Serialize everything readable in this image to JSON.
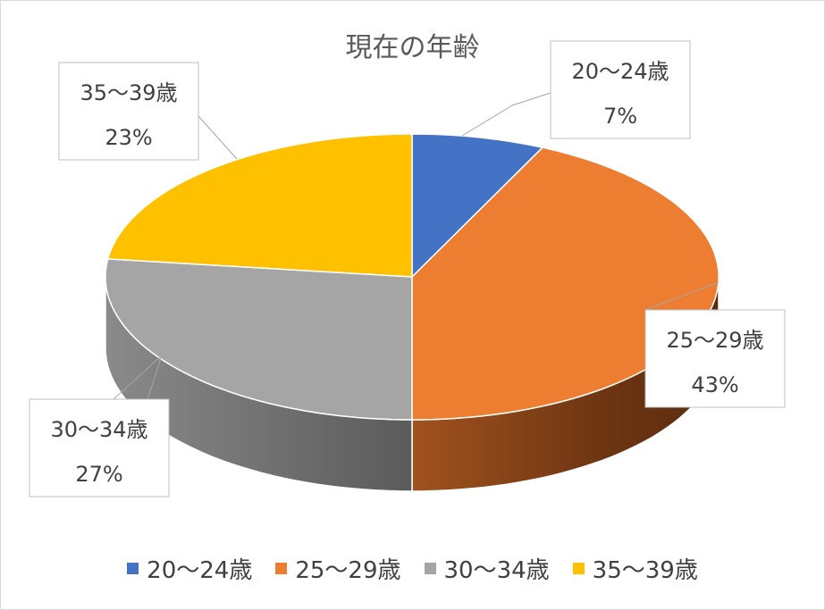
{
  "chart_data": {
    "type": "pie",
    "title": "現在の年齢",
    "categories": [
      "20～24歳",
      "25～29歳",
      "30～34歳",
      "35～39歳"
    ],
    "values": [
      7,
      43,
      27,
      23
    ],
    "value_labels": [
      "7%",
      "43%",
      "27%",
      "23%"
    ],
    "colors": [
      "#4472c4",
      "#ed7d31",
      "#a5a5a5",
      "#ffc000"
    ],
    "legend_position": "bottom",
    "style": "3d"
  }
}
